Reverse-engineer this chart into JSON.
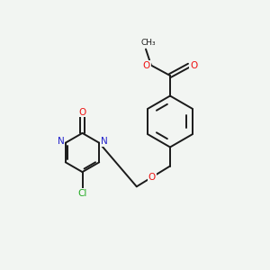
{
  "bg_color": "#f2f5f2",
  "bond_color": "#1a1a1a",
  "bond_width": 1.4,
  "dbo": 0.07,
  "atom_colors": {
    "O": "#ee1111",
    "N": "#2222cc",
    "Cl": "#22aa22",
    "C": "#1a1a1a"
  },
  "fs": 7.5,
  "fs_small": 6.5
}
